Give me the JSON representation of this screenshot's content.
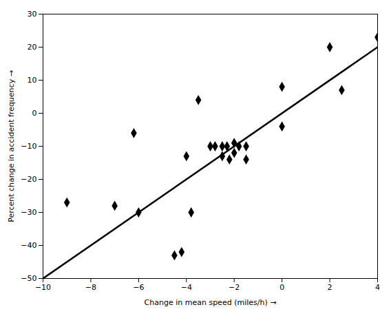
{
  "chart_data": {
    "type": "scatter",
    "xlabel": "Change in mean speed (miles/h)",
    "ylabel": "Percent change in accident frequency",
    "xlim": [
      -10,
      4
    ],
    "ylim": [
      -50,
      30
    ],
    "xticks": [
      -10,
      -8,
      -6,
      -4,
      -2,
      0,
      2,
      4
    ],
    "yticks": [
      -50,
      -40,
      -30,
      -20,
      -10,
      0,
      10,
      20,
      30
    ],
    "series": [
      {
        "type": "line",
        "color": "#000000",
        "x": [
          -10,
          4
        ],
        "values": [
          -50,
          20
        ]
      },
      {
        "type": "scatter",
        "marker": "diamond",
        "color": "#000000",
        "x": [
          -9,
          -7,
          -6.2,
          -6,
          -4.5,
          -4.2,
          -4,
          -3.8,
          -3.5,
          -3,
          -2.8,
          -2.5,
          -2.5,
          -2.3,
          -2.2,
          -2,
          -2,
          -1.8,
          -1.5,
          -1.5,
          0,
          0,
          2,
          2.5,
          4
        ],
        "values": [
          -27,
          -28,
          -6,
          -30,
          -43,
          -42,
          -13,
          -30,
          4,
          -10,
          -10,
          -10,
          -13,
          -10,
          -14,
          -12,
          -9,
          -10,
          -14,
          -10,
          -4,
          8,
          20,
          7,
          23
        ]
      }
    ]
  }
}
